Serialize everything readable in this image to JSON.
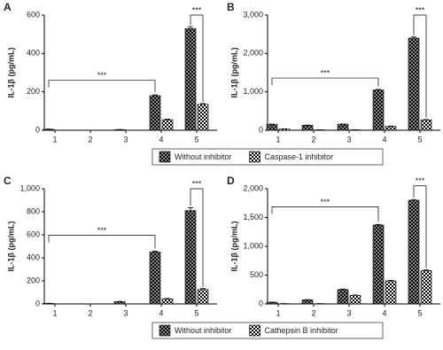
{
  "chart_data": [
    {
      "type": "bar",
      "panel": "A",
      "ylabel": "IL-1β (pg/mL)",
      "categories": [
        "1",
        "2",
        "3",
        "4",
        "5"
      ],
      "ylim": [
        0,
        600
      ],
      "yticks": [
        0,
        200,
        400,
        600
      ],
      "series": [
        {
          "name": "Without inhibitor",
          "color": "#8c8c8c",
          "values": [
            5,
            0,
            3,
            180,
            530
          ],
          "errors": [
            1,
            0,
            1,
            4,
            10
          ]
        },
        {
          "name": "Caspase-1 inhibitor",
          "color": "#ffffff",
          "values": [
            0,
            0,
            0,
            55,
            135
          ],
          "errors": [
            0,
            0,
            0,
            3,
            4
          ]
        }
      ],
      "annotations": [
        {
          "text": "***",
          "from": 0,
          "to": 3,
          "y": 260
        },
        {
          "text": "***",
          "from": 4,
          "to": 4,
          "y": 600
        }
      ]
    },
    {
      "type": "bar",
      "panel": "B",
      "ylabel": "IL-1β (pg/mL)",
      "categories": [
        "1",
        "2",
        "3",
        "4",
        "5"
      ],
      "ylim": [
        0,
        3000
      ],
      "yticks": [
        0,
        {
          "value": 1000,
          "label": "1,000"
        },
        {
          "value": 2000,
          "label": "2,000"
        },
        {
          "value": 3000,
          "label": "3,000"
        }
      ],
      "series": [
        {
          "color": "#8c8c8c",
          "values": [
            150,
            130,
            160,
            1050,
            2400
          ],
          "errors": [
            10,
            5,
            5,
            15,
            30
          ]
        },
        {
          "color": "#ffffff",
          "values": [
            30,
            10,
            10,
            100,
            270
          ],
          "errors": [
            3,
            2,
            2,
            8,
            10
          ]
        }
      ],
      "annotations": [
        {
          "text": "***",
          "from": 0,
          "to": 3,
          "y": 1360
        },
        {
          "text": "***",
          "from": 4,
          "to": 4,
          "y": 3000
        }
      ]
    },
    {
      "type": "bar",
      "panel": "C",
      "ylabel": "IL-1β (pg/mL)",
      "categories": [
        "1",
        "2",
        "3",
        "4",
        "5"
      ],
      "ylim": [
        0,
        1000
      ],
      "yticks": [
        0,
        200,
        400,
        600,
        800,
        {
          "value": 1000,
          "label": "1,000"
        }
      ],
      "series": [
        {
          "name": "Without inhibitor",
          "color": "#8c8c8c",
          "values": [
            5,
            0,
            20,
            450,
            810
          ],
          "errors": [
            1,
            0,
            2,
            8,
            25
          ]
        },
        {
          "name": "Cathepsin B inhibitor",
          "color": "#ffffff",
          "values": [
            0,
            0,
            0,
            45,
            125
          ],
          "errors": [
            0,
            0,
            0,
            3,
            8
          ]
        }
      ],
      "annotations": [
        {
          "text": "***",
          "from": 0,
          "to": 3,
          "y": 595
        },
        {
          "text": "***",
          "from": 4,
          "to": 4,
          "y": 1000
        }
      ]
    },
    {
      "type": "bar",
      "panel": "D",
      "ylabel": "IL-1β (pg/mL)",
      "categories": [
        "1",
        "2",
        "3",
        "4",
        "5"
      ],
      "ylim": [
        0,
        2000
      ],
      "yticks": [
        0,
        500,
        {
          "value": 1000,
          "label": "1,000"
        },
        {
          "value": 1500,
          "label": "1,500"
        },
        {
          "value": 2000,
          "label": "2,000"
        }
      ],
      "series": [
        {
          "color": "#8c8c8c",
          "values": [
            30,
            70,
            250,
            1370,
            1800
          ],
          "errors": [
            3,
            5,
            8,
            10,
            12
          ]
        },
        {
          "color": "#ffffff",
          "values": [
            5,
            5,
            150,
            400,
            580
          ],
          "errors": [
            1,
            1,
            5,
            10,
            12
          ]
        }
      ],
      "annotations": [
        {
          "text": "***",
          "from": 0,
          "to": 3,
          "y": 1685
        },
        {
          "text": "***",
          "from": 4,
          "to": 4,
          "y": 2050
        }
      ]
    }
  ]
}
